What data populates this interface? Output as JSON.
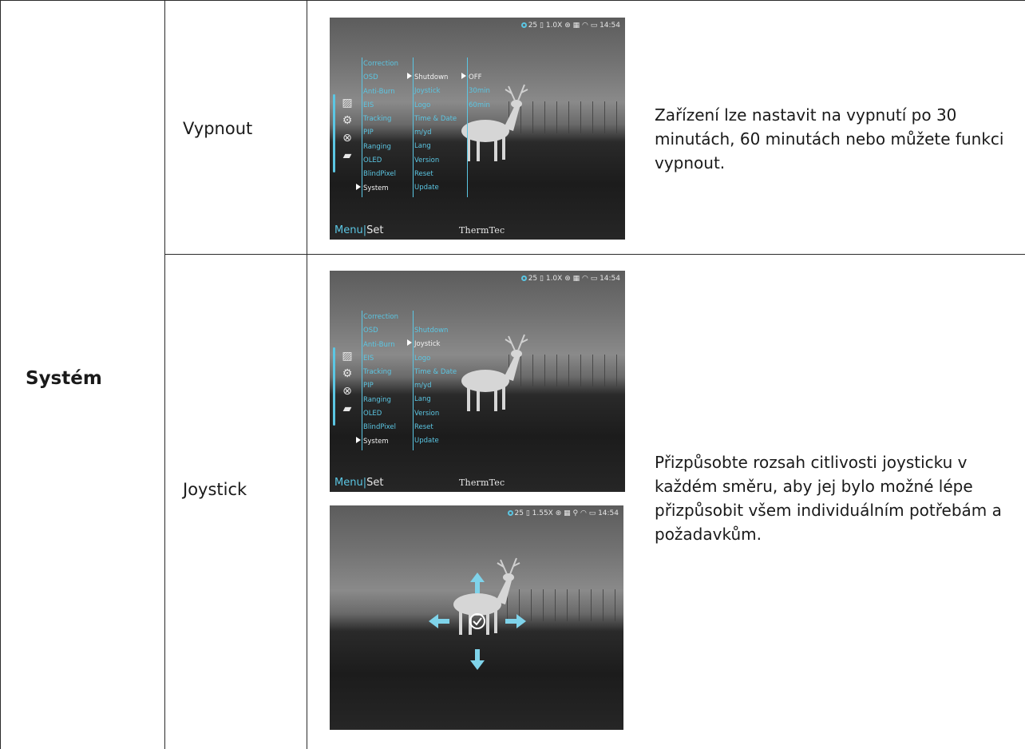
{
  "table": {
    "category": "Systém",
    "rows": [
      {
        "name": "Vypnout",
        "description": "Zařízení lze nastavit na vypnutí po 30 minutách, 60 minutách nebo můžete funkci vypnout."
      },
      {
        "name": "Joystick",
        "description": "Přizpůsobte rozsah citlivosti joysticku v každém směru, aby jej bylo možné lépe přizpůsobit všem individuálním potřebám a požadavkům."
      }
    ]
  },
  "device_ui": {
    "status_bar": {
      "num": "25",
      "zoom": "1.0X",
      "time": "14:54"
    },
    "status_bar_joystick": {
      "num": "25",
      "zoom": "1.55X",
      "time": "14:54"
    },
    "menu_main": [
      "Correction",
      "OSD",
      "Anti-Burn",
      "EIS",
      "Tracking",
      "PIP",
      "Ranging",
      "OLED",
      "BlindPixel",
      "System"
    ],
    "menu_system": [
      "Shutdown",
      "Joystick",
      "Logo",
      "Time & Date",
      "m/yd",
      "Lang",
      "Version",
      "Reset",
      "Update"
    ],
    "menu_shutdown_options": [
      "OFF",
      "30min",
      "60min"
    ],
    "footer_menu": "Menu",
    "footer_set": "Set",
    "brand": "ThermTec",
    "colors": {
      "accent": "#5bc6e3"
    },
    "icons": [
      "image-icon",
      "settings-icon",
      "compass-icon",
      "folder-icon"
    ]
  }
}
